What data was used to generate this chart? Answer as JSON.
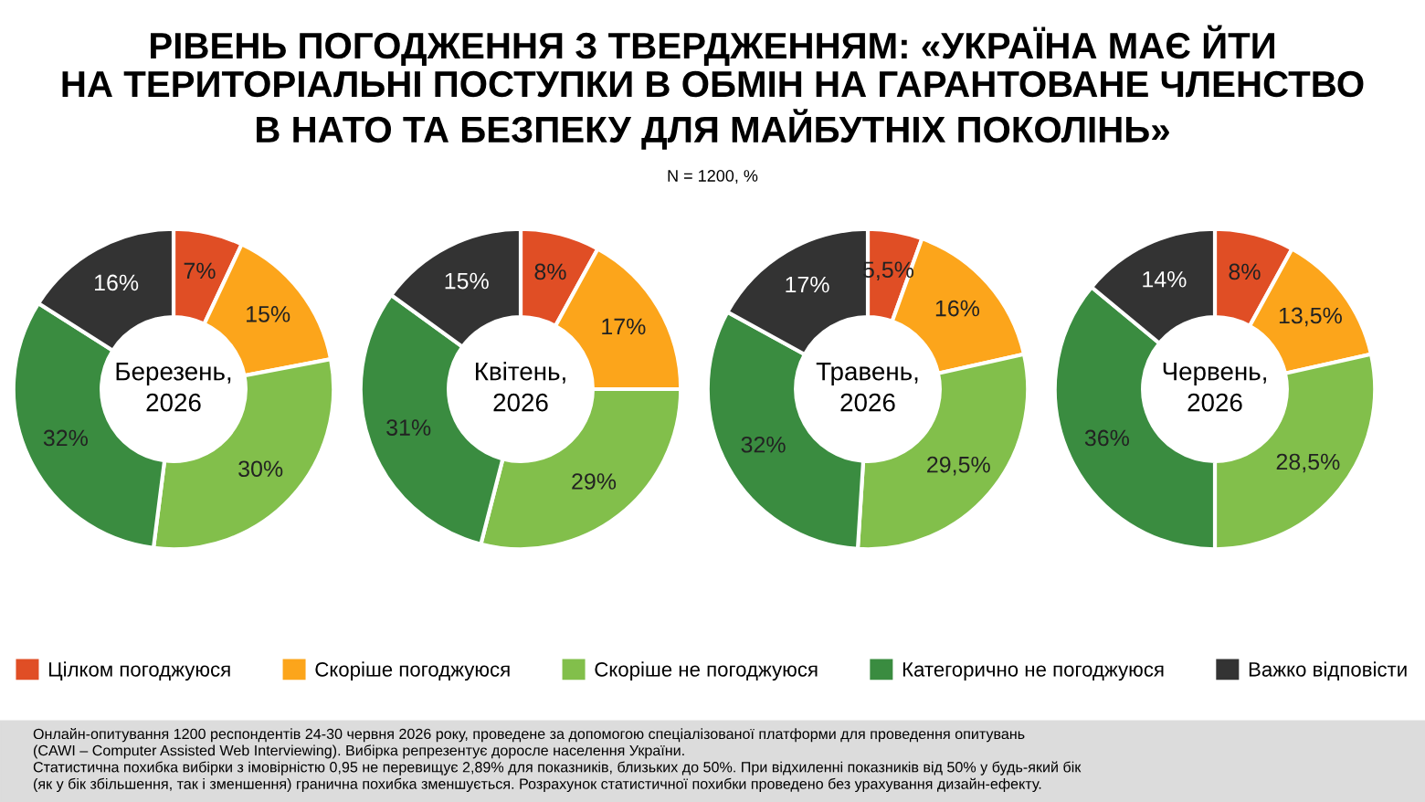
{
  "chart_data": [
    {
      "type": "donut",
      "title": "Березень,\n2026",
      "categories": [
        "Цілком погоджуюся",
        "Скоріше погоджуюся",
        "Скоріше не погоджуюся",
        "Категорично не погоджуюся",
        "Важко відповісти"
      ],
      "values": [
        7,
        15,
        30,
        32,
        16
      ],
      "value_labels": [
        "7%",
        "15%",
        "30%",
        "32%",
        "16%"
      ],
      "colors": [
        "#e04e25",
        "#fca51b",
        "#82bf4b",
        "#3a8c40",
        "#333333"
      ],
      "legend": "bottom",
      "annotations": [
        "РІВЕНЬ ПОГОДЖЕННЯ З ТВЕРДЖЕННЯМ: «УКРАЇНА МАЄ ЙТИ\nНА ТЕРИТОРІАЛЬНІ ПОСТУПКИ В ОБМІН НА ГАРАНТОВАНЕ ЧЛЕНСТВО\nВ НАТО ТА БЕЗПЕКУ ДЛЯ МАЙБУТНІХ ПОКОЛІНЬ»",
        "N = 1200, %",
        "Онлайн-опитування 1200 респондентів 24-30 червня 2026 року, проведене за допомогою спеціалізованої платформи для проведення опитувань\n(CAWI – Computer Assisted Web Interviewing). Вибірка репрезентує доросле населення України.\nСтатистична похибка вибірки з імовірністю 0,95 не перевищує 2,89% для показників, близьких до 50%. При відхиленні показників від 50% у будь-який бік\n(як у бік збільшення, так і зменшення) гранична похибка зменшується. Розрахунок статистичної похибки проведено без урахування дизайн-ефекту."
      ]
    },
    {
      "type": "donut",
      "title": "Квітень,\n2026",
      "categories": [
        null,
        null,
        null,
        null,
        null
      ],
      "values": [
        8,
        17,
        29,
        31,
        15
      ],
      "value_labels": [
        "8%",
        "17%",
        "29%",
        "31%",
        "15%"
      ],
      "colors": [
        "#e04e25",
        "#fca51b",
        "#82bf4b",
        "#3a8c40",
        "#333333"
      ]
    },
    {
      "type": "donut",
      "title": "Травень,\n2026",
      "categories": [
        null,
        null,
        null,
        null,
        null
      ],
      "values": [
        5.5,
        16,
        29.5,
        32,
        17
      ],
      "value_labels": [
        "5,5%",
        "16%",
        "29,5%",
        "32%",
        "17%"
      ],
      "colors": [
        "#e04e25",
        "#fca51b",
        "#82bf4b",
        "#3a8c40",
        "#333333"
      ]
    },
    {
      "type": "donut",
      "title": "Червень,\n2026",
      "categories": [
        null,
        null,
        null,
        null,
        null
      ],
      "values": [
        8,
        13.5,
        28.5,
        36,
        14
      ],
      "value_labels": [
        "8%",
        "13,5%",
        "28,5%",
        "36%",
        "14%"
      ],
      "colors": [
        "#e04e25",
        "#fca51b",
        "#82bf4b",
        "#3a8c40",
        "#333333"
      ]
    }
  ]
}
